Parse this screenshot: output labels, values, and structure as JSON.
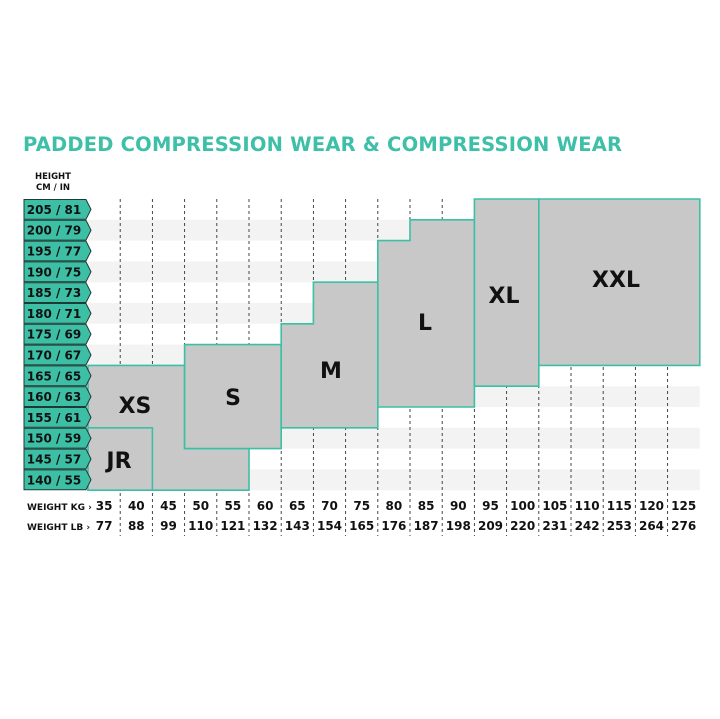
{
  "title": "PADDED COMPRESSION WEAR & COMPRESSION WEAR",
  "height_header": [
    "HEIGHT",
    "CM / IN"
  ],
  "heights": [
    "205 / 81",
    "200 / 79",
    "195 / 77",
    "190 / 75",
    "185 / 73",
    "180 / 71",
    "175 / 69",
    "170 / 67",
    "165 / 65",
    "160 / 63",
    "155 / 61",
    "150 / 59",
    "145 / 57",
    "140 / 55"
  ],
  "height_cm": [
    205,
    200,
    195,
    190,
    185,
    180,
    175,
    170,
    165,
    160,
    155,
    150,
    145,
    140
  ],
  "weight_kg_label": "WEIGHT KG ›",
  "weight_lb_label": "WEIGHT LB ›",
  "weights_kg": [
    "35",
    "40",
    "45",
    "50",
    "55",
    "60",
    "65",
    "70",
    "75",
    "80",
    "85",
    "90",
    "95",
    "100",
    "105",
    "110",
    "115",
    "120",
    "125"
  ],
  "weights_lb": [
    "77",
    "88",
    "99",
    "110",
    "121",
    "132",
    "143",
    "154",
    "165",
    "176",
    "187",
    "198",
    "209",
    "220",
    "231",
    "242",
    "253",
    "264",
    "276"
  ],
  "colors": {
    "accent": "#3cbfa5",
    "size_fill": "#c8c8c8",
    "stripe": "#f3f3f3"
  },
  "sizes": [
    {
      "label": "XS",
      "columns": [
        {
          "kg": 35,
          "h": [
            140,
            165
          ]
        },
        {
          "kg": 40,
          "h": [
            140,
            165
          ]
        },
        {
          "kg": 45,
          "h": [
            140,
            165
          ]
        },
        {
          "kg": 50,
          "h": [
            140,
            145
          ]
        },
        {
          "kg": 55,
          "h": [
            140,
            145
          ]
        }
      ]
    },
    {
      "label": "JR",
      "columns": [
        {
          "kg": 35,
          "h": [
            140,
            150
          ]
        },
        {
          "kg": 40,
          "h": [
            140,
            150
          ]
        }
      ]
    },
    {
      "label": "S",
      "columns": [
        {
          "kg": 50,
          "h": [
            150,
            170
          ]
        },
        {
          "kg": 55,
          "h": [
            150,
            170
          ]
        },
        {
          "kg": 60,
          "h": [
            150,
            170
          ]
        }
      ]
    },
    {
      "label": "M",
      "columns": [
        {
          "kg": 65,
          "h": [
            155,
            175
          ]
        },
        {
          "kg": 70,
          "h": [
            155,
            185
          ]
        },
        {
          "kg": 75,
          "h": [
            155,
            185
          ]
        }
      ]
    },
    {
      "label": "L",
      "columns": [
        {
          "kg": 80,
          "h": [
            160,
            195
          ]
        },
        {
          "kg": 85,
          "h": [
            160,
            200
          ]
        },
        {
          "kg": 90,
          "h": [
            160,
            200
          ]
        }
      ]
    },
    {
      "label": "XL",
      "columns": [
        {
          "kg": 95,
          "h": [
            165,
            205
          ]
        },
        {
          "kg": 100,
          "h": [
            165,
            205
          ]
        }
      ]
    },
    {
      "label": "XXL",
      "columns": [
        {
          "kg": 105,
          "h": [
            170,
            205
          ]
        },
        {
          "kg": 110,
          "h": [
            170,
            205
          ]
        },
        {
          "kg": 115,
          "h": [
            170,
            205
          ]
        },
        {
          "kg": 120,
          "h": [
            170,
            205
          ]
        },
        {
          "kg": 125,
          "h": [
            170,
            205
          ]
        }
      ]
    }
  ]
}
